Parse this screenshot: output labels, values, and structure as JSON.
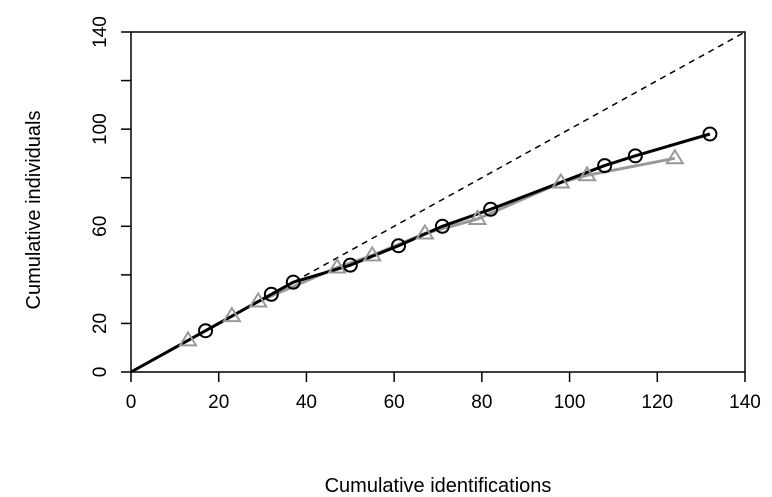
{
  "chart_data": {
    "type": "line",
    "title": "",
    "xlabel": "Cumulative identifications",
    "ylabel": "Cumulative individuals",
    "xlim": [
      0,
      140
    ],
    "ylim": [
      0,
      140
    ],
    "x_ticks": [
      0,
      20,
      40,
      60,
      80,
      100,
      120,
      140
    ],
    "y_ticks": [
      0,
      20,
      60,
      100,
      140
    ],
    "y_minor_ticks": [
      40,
      80,
      120
    ],
    "grid": false,
    "legend": "none",
    "reference_line": {
      "style": "dashed",
      "color": "#000000",
      "points": [
        [
          0,
          0
        ],
        [
          140,
          140
        ]
      ]
    },
    "series": [
      {
        "marker": "circle",
        "color": "#000000",
        "line_width": 3,
        "x": [
          0,
          17,
          32,
          37,
          50,
          61,
          71,
          82,
          108,
          115,
          132
        ],
        "y": [
          0,
          17,
          32,
          37,
          44,
          52,
          60,
          67,
          85,
          89,
          98
        ]
      },
      {
        "marker": "triangle",
        "color": "#999999",
        "line_width": 3,
        "x": [
          0,
          13,
          23,
          29,
          47,
          55,
          67,
          79,
          98,
          104,
          124
        ],
        "y": [
          0,
          13,
          23,
          29,
          43,
          48,
          57,
          63,
          78,
          81,
          88
        ]
      }
    ]
  }
}
